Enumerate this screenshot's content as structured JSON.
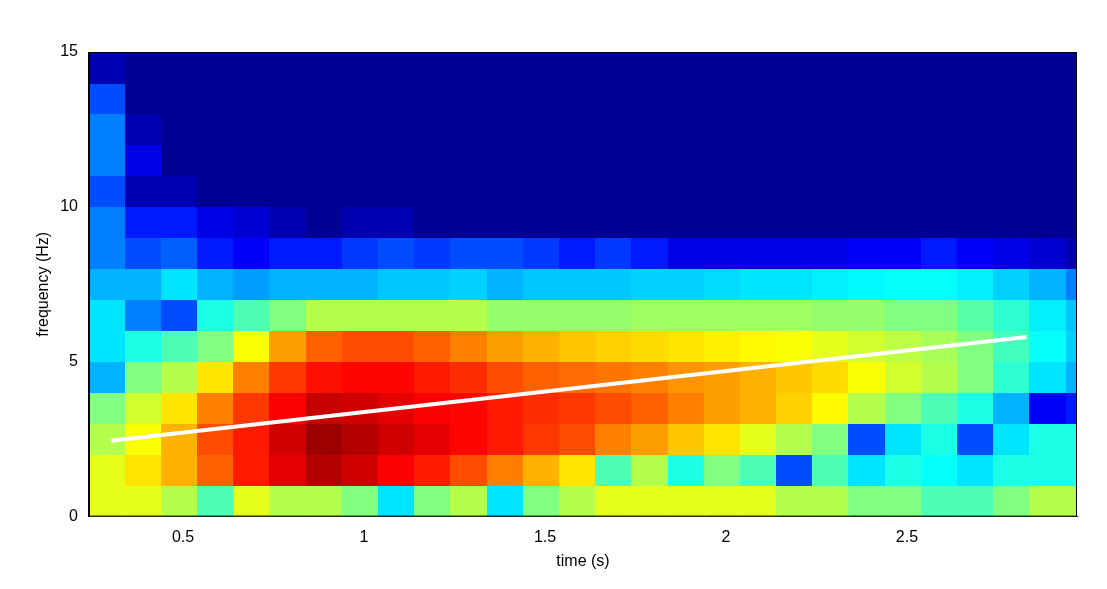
{
  "chart_data": {
    "type": "heatmap",
    "x_label": "time (s)",
    "y_label": "frequency (Hz)",
    "xlim": [
      0.24,
      2.97
    ],
    "xticks": [
      0.5,
      1,
      1.5,
      2,
      2.5
    ],
    "ylim": [
      0,
      15
    ],
    "yticks": [
      0,
      5,
      10,
      15
    ],
    "grid": false,
    "heatmap": {
      "x": [
        0.29,
        0.39,
        0.49,
        0.59,
        0.69,
        0.79,
        0.89,
        0.99,
        1.09,
        1.19,
        1.29,
        1.39,
        1.49,
        1.59,
        1.69,
        1.79,
        1.89,
        1.99,
        2.09,
        2.19,
        2.29,
        2.39,
        2.49,
        2.59,
        2.69,
        2.79,
        2.89,
        2.99
      ],
      "y": [
        0.5,
        1.5,
        2.5,
        3.5,
        4.5,
        5.5,
        6.5,
        7.5,
        8.5,
        9.5,
        10.5,
        11.5,
        12.5,
        13.5,
        14.5
      ],
      "zlim": [
        0,
        1
      ],
      "cells": [
        [
          0.6,
          0.6,
          0.55,
          0.5,
          0.3,
          0.35,
          0.35,
          0.3,
          0.25,
          0.25,
          0.2,
          0.25,
          0.25,
          0.2,
          0.05
        ],
        [
          0.6,
          0.65,
          0.62,
          0.58,
          0.5,
          0.4,
          0.25,
          0.3,
          0.2,
          0.15,
          0.05,
          0.1,
          0.05,
          0.02,
          0.02
        ],
        [
          0.55,
          0.7,
          0.7,
          0.65,
          0.55,
          0.45,
          0.2,
          0.35,
          0.22,
          0.15,
          0.05,
          0.02,
          0.02,
          0.02,
          0.02
        ],
        [
          0.45,
          0.78,
          0.8,
          0.75,
          0.65,
          0.5,
          0.4,
          0.3,
          0.15,
          0.1,
          0.02,
          0.02,
          0.02,
          0.02,
          0.02
        ],
        [
          0.6,
          0.85,
          0.85,
          0.82,
          0.75,
          0.62,
          0.45,
          0.28,
          0.12,
          0.08,
          0.02,
          0.02,
          0.02,
          0.02,
          0.02
        ],
        [
          0.55,
          0.9,
          0.92,
          0.88,
          0.82,
          0.72,
          0.5,
          0.3,
          0.15,
          0.05,
          0.02,
          0.02,
          0.02,
          0.02,
          0.02
        ],
        [
          0.55,
          0.95,
          0.97,
          0.93,
          0.86,
          0.78,
          0.55,
          0.3,
          0.15,
          0.02,
          0.02,
          0.02,
          0.02,
          0.02,
          0.02
        ],
        [
          0.5,
          0.92,
          0.95,
          0.92,
          0.87,
          0.8,
          0.55,
          0.3,
          0.18,
          0.05,
          0.02,
          0.02,
          0.02,
          0.02,
          0.02
        ],
        [
          0.35,
          0.88,
          0.92,
          0.9,
          0.87,
          0.8,
          0.55,
          0.32,
          0.2,
          0.05,
          0.02,
          0.02,
          0.02,
          0.02,
          0.02
        ],
        [
          0.5,
          0.85,
          0.9,
          0.88,
          0.85,
          0.78,
          0.55,
          0.32,
          0.18,
          0.02,
          0.02,
          0.02,
          0.02,
          0.02,
          0.02
        ],
        [
          0.55,
          0.8,
          0.87,
          0.87,
          0.83,
          0.75,
          0.55,
          0.33,
          0.2,
          0.02,
          0.02,
          0.02,
          0.02,
          0.02,
          0.02
        ],
        [
          0.35,
          0.75,
          0.85,
          0.85,
          0.8,
          0.72,
          0.52,
          0.3,
          0.2,
          0.02,
          0.02,
          0.02,
          0.02,
          0.02,
          0.02
        ],
        [
          0.5,
          0.7,
          0.82,
          0.83,
          0.78,
          0.7,
          0.52,
          0.32,
          0.18,
          0.02,
          0.02,
          0.02,
          0.02,
          0.02,
          0.02
        ],
        [
          0.55,
          0.65,
          0.8,
          0.82,
          0.77,
          0.68,
          0.52,
          0.32,
          0.15,
          0.02,
          0.02,
          0.02,
          0.02,
          0.02,
          0.02
        ],
        [
          0.6,
          0.45,
          0.75,
          0.8,
          0.76,
          0.67,
          0.52,
          0.32,
          0.18,
          0.02,
          0.02,
          0.02,
          0.02,
          0.02,
          0.02
        ],
        [
          0.6,
          0.55,
          0.72,
          0.78,
          0.75,
          0.66,
          0.53,
          0.33,
          0.15,
          0.02,
          0.02,
          0.02,
          0.02,
          0.02,
          0.02
        ],
        [
          0.6,
          0.4,
          0.68,
          0.75,
          0.73,
          0.65,
          0.53,
          0.33,
          0.1,
          0.02,
          0.02,
          0.02,
          0.02,
          0.02,
          0.02
        ],
        [
          0.6,
          0.5,
          0.65,
          0.72,
          0.72,
          0.64,
          0.53,
          0.34,
          0.1,
          0.02,
          0.02,
          0.02,
          0.02,
          0.02,
          0.02
        ],
        [
          0.6,
          0.45,
          0.6,
          0.7,
          0.7,
          0.63,
          0.53,
          0.35,
          0.1,
          0.02,
          0.02,
          0.02,
          0.02,
          0.02,
          0.02
        ],
        [
          0.55,
          0.2,
          0.55,
          0.67,
          0.68,
          0.62,
          0.53,
          0.35,
          0.1,
          0.02,
          0.02,
          0.02,
          0.02,
          0.02,
          0.02
        ],
        [
          0.55,
          0.45,
          0.5,
          0.63,
          0.66,
          0.6,
          0.52,
          0.36,
          0.1,
          0.02,
          0.02,
          0.02,
          0.02,
          0.02,
          0.02
        ],
        [
          0.5,
          0.35,
          0.2,
          0.55,
          0.62,
          0.58,
          0.52,
          0.37,
          0.12,
          0.02,
          0.02,
          0.02,
          0.02,
          0.02,
          0.02
        ],
        [
          0.5,
          0.4,
          0.35,
          0.5,
          0.58,
          0.56,
          0.5,
          0.38,
          0.12,
          0.02,
          0.02,
          0.02,
          0.02,
          0.02,
          0.02
        ],
        [
          0.45,
          0.38,
          0.4,
          0.45,
          0.55,
          0.54,
          0.5,
          0.38,
          0.15,
          0.02,
          0.02,
          0.02,
          0.02,
          0.02,
          0.02
        ],
        [
          0.45,
          0.35,
          0.2,
          0.4,
          0.5,
          0.5,
          0.46,
          0.36,
          0.12,
          0.02,
          0.02,
          0.02,
          0.02,
          0.02,
          0.02
        ],
        [
          0.5,
          0.4,
          0.35,
          0.3,
          0.42,
          0.44,
          0.42,
          0.33,
          0.1,
          0.02,
          0.02,
          0.02,
          0.02,
          0.02,
          0.02
        ],
        [
          0.55,
          0.4,
          0.4,
          0.12,
          0.35,
          0.38,
          0.36,
          0.3,
          0.08,
          0.02,
          0.02,
          0.02,
          0.02,
          0.02,
          0.02
        ],
        [
          0.55,
          0.4,
          0.4,
          0.15,
          0.3,
          0.33,
          0.32,
          0.25,
          0.05,
          0.02,
          0.02,
          0.02,
          0.02,
          0.02,
          0.02
        ]
      ]
    },
    "series": [
      {
        "type": "line",
        "color": "#ffffff",
        "x": [
          0.3,
          2.83
        ],
        "values": [
          2.45,
          5.8
        ]
      }
    ]
  }
}
